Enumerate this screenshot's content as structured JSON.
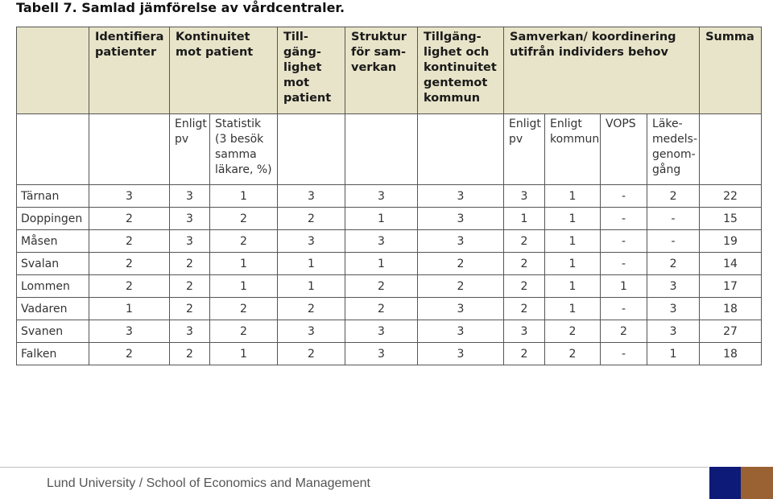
{
  "title": "Tabell 7. Samlad jämförelse av vårdcentraler.",
  "headers": {
    "identifiera": "Identifiera patienter",
    "kontinuitet": "Kontinuitet mot patient",
    "tillganglighet": "Till-gäng-lighet mot patient",
    "struktur": "Struktur för sam-verkan",
    "tillgang_kommun": "Tillgäng-lighet och kontinuitet gentemot kommun",
    "samverkan": "Samverkan/ koordinering utifrån individers behov",
    "summa": "Summa"
  },
  "subheaders": {
    "enligt_pv_1": "Enligt pv",
    "statistik": "Statistik (3 besök samma läkare, %)",
    "enligt_pv_2": "Enligt pv",
    "enligt_kommun": "Enligt kommun",
    "vops": "VOPS",
    "lakemedel": "Läke-medels-genom-gång"
  },
  "rows": [
    {
      "name": "Tärnan",
      "cells": [
        "3",
        "3",
        "1",
        "3",
        "3",
        "3",
        "3",
        "1",
        "-",
        "2",
        "22"
      ]
    },
    {
      "name": "Doppingen",
      "cells": [
        "2",
        "3",
        "2",
        "2",
        "1",
        "3",
        "1",
        "1",
        "-",
        "-",
        "15"
      ]
    },
    {
      "name": "Måsen",
      "cells": [
        "2",
        "3",
        "2",
        "3",
        "3",
        "3",
        "2",
        "1",
        "-",
        "-",
        "19"
      ]
    },
    {
      "name": "Svalan",
      "cells": [
        "2",
        "2",
        "1",
        "1",
        "1",
        "2",
        "2",
        "1",
        "-",
        "2",
        "14"
      ]
    },
    {
      "name": "Lommen",
      "cells": [
        "2",
        "2",
        "1",
        "1",
        "2",
        "2",
        "2",
        "1",
        "1",
        "3",
        "17"
      ]
    },
    {
      "name": "Vadaren",
      "cells": [
        "1",
        "2",
        "2",
        "2",
        "2",
        "3",
        "2",
        "1",
        "-",
        "3",
        "18"
      ]
    },
    {
      "name": "Svanen",
      "cells": [
        "3",
        "3",
        "2",
        "3",
        "3",
        "3",
        "3",
        "2",
        "2",
        "3",
        "27"
      ]
    },
    {
      "name": "Falken",
      "cells": [
        "2",
        "2",
        "1",
        "2",
        "3",
        "3",
        "2",
        "2",
        "-",
        "1",
        "18"
      ]
    }
  ],
  "footer": {
    "text": "Lund University / School of Economics and Management",
    "accent_blue": "#0d1a78",
    "accent_brown": "#9a6132"
  }
}
